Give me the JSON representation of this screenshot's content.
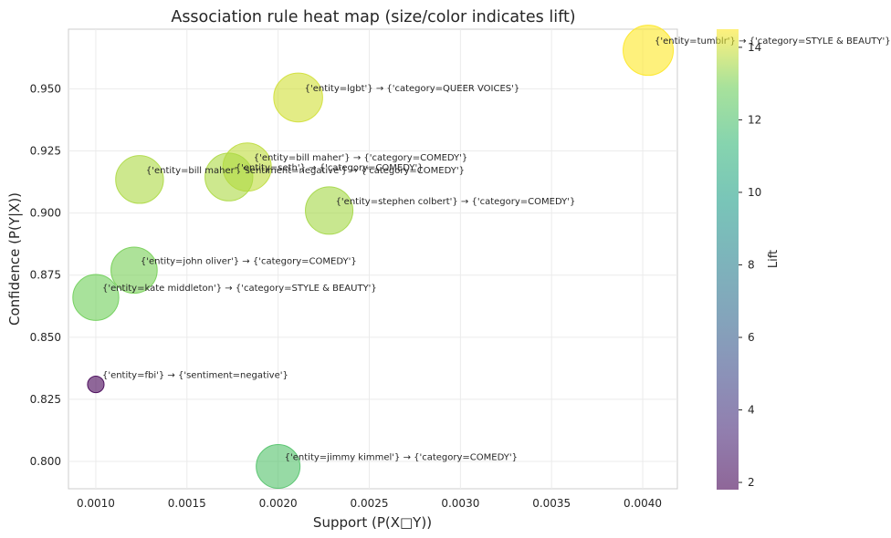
{
  "chart_data": {
    "type": "scatter",
    "title": "Association rule heat map (size/color indicates lift)",
    "xlabel": "Support (P(X□Y))",
    "ylabel": "Confidence (P(Y|X))",
    "xlim": [
      0.00085,
      0.00419
    ],
    "ylim": [
      0.789,
      0.974
    ],
    "xticks": [
      "0.0010",
      "0.0015",
      "0.0020",
      "0.0025",
      "0.0030",
      "0.0035",
      "0.0040"
    ],
    "yticks": [
      "0.800",
      "0.825",
      "0.850",
      "0.875",
      "0.900",
      "0.925",
      "0.950"
    ],
    "grid": true,
    "colorbar": {
      "label": "Lift",
      "range": [
        1.8,
        14.5
      ],
      "ticks": [
        "2",
        "4",
        "6",
        "8",
        "10",
        "12",
        "14"
      ],
      "colormap": "viridis"
    },
    "points": [
      {
        "label": "{'entity=tumblr'} → {'category=STYLE & BEAUTY'}",
        "x": 0.00403,
        "y": 0.9655,
        "lift": 14.5
      },
      {
        "label": "{'entity=lgbt'} → {'category=QUEER VOICES'}",
        "x": 0.00211,
        "y": 0.9465,
        "lift": 14.0
      },
      {
        "label": "{'entity=bill maher'} → {'category=COMEDY'}",
        "x": 0.00183,
        "y": 0.9185,
        "lift": 13.8
      },
      {
        "label": "{'entity=seth'} → {'category=COMEDY'}",
        "x": 0.00173,
        "y": 0.9145,
        "lift": 13.6
      },
      {
        "label": "{'entity=bill maher', 'sentiment=negative'} → {'category=COMEDY'}",
        "x": 0.00124,
        "y": 0.9135,
        "lift": 13.6
      },
      {
        "label": "{'entity=stephen colbert'} → {'category=COMEDY'}",
        "x": 0.00228,
        "y": 0.901,
        "lift": 13.5
      },
      {
        "label": "{'entity=john oliver'} → {'category=COMEDY'}",
        "x": 0.00121,
        "y": 0.877,
        "lift": 13.0
      },
      {
        "label": "{'entity=kate middleton'} → {'category=STYLE & BEAUTY'}",
        "x": 0.001,
        "y": 0.866,
        "lift": 12.9
      },
      {
        "label": "{'entity=fbi'} → {'sentiment=negative'}",
        "x": 0.001,
        "y": 0.831,
        "lift": 1.85
      },
      {
        "label": "{'entity=jimmy kimmel'} → {'category=COMEDY'}",
        "x": 0.002,
        "y": 0.798,
        "lift": 12.1
      }
    ]
  }
}
